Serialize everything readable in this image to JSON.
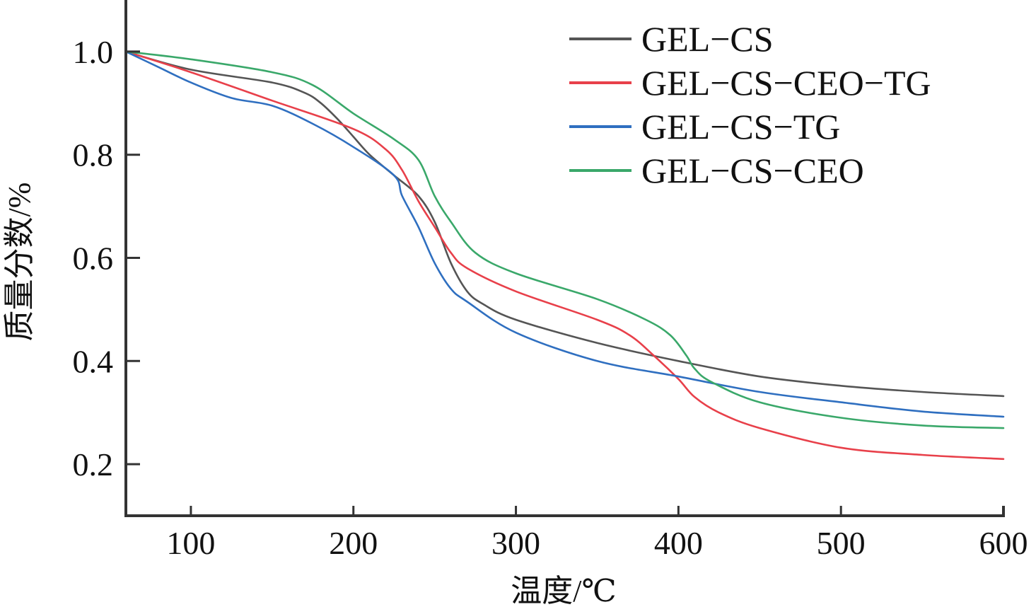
{
  "chart_data": {
    "type": "line",
    "title": "",
    "xlabel": "温度/℃",
    "ylabel": "质量分数/%",
    "xlim": [
      60,
      600
    ],
    "ylim": [
      0.1,
      1.1
    ],
    "xticks": [
      100,
      200,
      300,
      400,
      500,
      600
    ],
    "xtick_labels": [
      "100",
      "200",
      "300",
      "400",
      "500",
      "600"
    ],
    "yticks": [
      0.2,
      0.4,
      0.6,
      0.8,
      1.0
    ],
    "ytick_labels": [
      "0.2",
      "0.4",
      "0.6",
      "0.8",
      "1.0"
    ],
    "grid": false,
    "legend_position": "top-right",
    "series": [
      {
        "name": "GEL−CS",
        "color": "#555555",
        "x": [
          60,
          100,
          150,
          170,
          180,
          190,
          200,
          210,
          225,
          240,
          250,
          260,
          270,
          280,
          300,
          350,
          400,
          450,
          500,
          550,
          600
        ],
        "y": [
          1.0,
          0.965,
          0.94,
          0.92,
          0.9,
          0.87,
          0.835,
          0.8,
          0.76,
          0.72,
          0.67,
          0.59,
          0.535,
          0.51,
          0.48,
          0.435,
          0.4,
          0.37,
          0.352,
          0.34,
          0.332
        ]
      },
      {
        "name": "GEL−CS−CEO−TG",
        "color": "#e8404a",
        "x": [
          60,
          100,
          150,
          200,
          220,
          230,
          240,
          250,
          260,
          270,
          300,
          350,
          370,
          385,
          400,
          410,
          425,
          450,
          500,
          550,
          600
        ],
        "y": [
          1.0,
          0.96,
          0.905,
          0.85,
          0.81,
          0.77,
          0.71,
          0.66,
          0.61,
          0.58,
          0.535,
          0.48,
          0.45,
          0.41,
          0.365,
          0.33,
          0.3,
          0.27,
          0.232,
          0.218,
          0.21
        ]
      },
      {
        "name": "GEL−CS−TG",
        "color": "#2f6fc0",
        "x": [
          60,
          80,
          100,
          125,
          150,
          175,
          200,
          225,
          230,
          240,
          250,
          260,
          270,
          300,
          350,
          400,
          450,
          500,
          550,
          600
        ],
        "y": [
          1.0,
          0.97,
          0.94,
          0.91,
          0.895,
          0.86,
          0.815,
          0.76,
          0.72,
          0.66,
          0.59,
          0.54,
          0.515,
          0.455,
          0.4,
          0.37,
          0.34,
          0.32,
          0.302,
          0.292
        ]
      },
      {
        "name": "GEL−CS−CEO",
        "color": "#3aa86a",
        "x": [
          60,
          100,
          150,
          175,
          200,
          225,
          240,
          250,
          260,
          275,
          300,
          350,
          380,
          395,
          405,
          410,
          420,
          450,
          500,
          550,
          600
        ],
        "y": [
          1.0,
          0.985,
          0.96,
          0.935,
          0.88,
          0.83,
          0.79,
          0.72,
          0.67,
          0.61,
          0.57,
          0.52,
          0.48,
          0.45,
          0.41,
          0.385,
          0.36,
          0.32,
          0.29,
          0.275,
          0.27
        ]
      }
    ]
  }
}
